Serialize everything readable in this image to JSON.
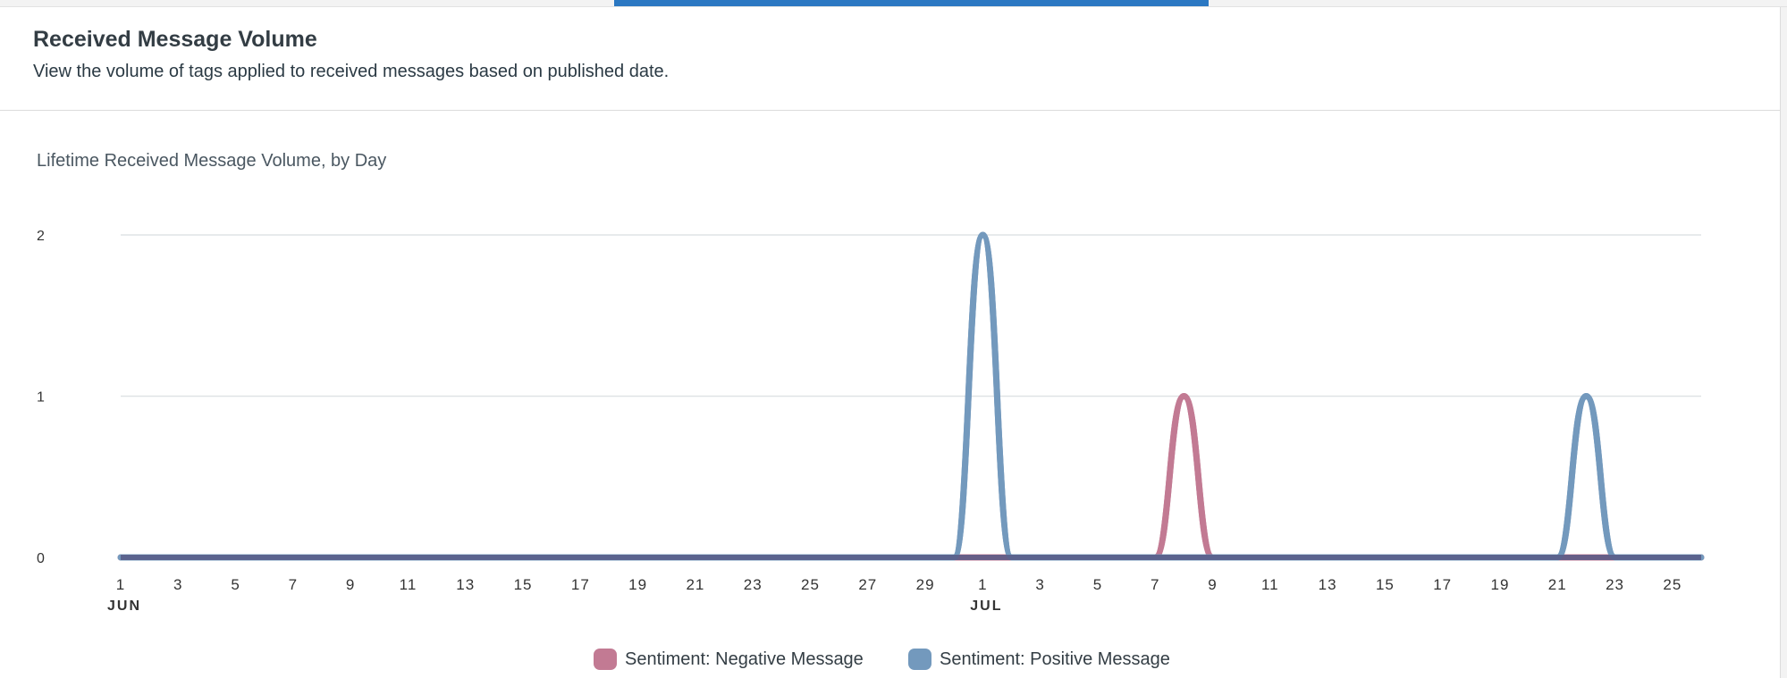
{
  "header": {
    "title": "Received Message Volume",
    "subtitle": "View the volume of tags applied to received messages based on published date."
  },
  "colors": {
    "negative": "#c27a93",
    "positive": "#7399bd",
    "baseline": "#575a86",
    "accent": "#2b78c2"
  },
  "chart_data": {
    "type": "line",
    "title": "Lifetime Received Message Volume, by Day",
    "xlabel": "",
    "ylabel": "",
    "ylim": [
      0,
      2
    ],
    "yticks": [
      "0",
      "1",
      "2"
    ],
    "xlim": [
      "2023-06-01",
      "2023-07-26"
    ],
    "grid": true,
    "legend_position": "bottom-center",
    "x_tick_labels": [
      {
        "date": "2023-06-01",
        "label": "1",
        "month": "JUN"
      },
      {
        "date": "2023-06-03",
        "label": "3"
      },
      {
        "date": "2023-06-05",
        "label": "5"
      },
      {
        "date": "2023-06-07",
        "label": "7"
      },
      {
        "date": "2023-06-09",
        "label": "9"
      },
      {
        "date": "2023-06-11",
        "label": "11"
      },
      {
        "date": "2023-06-13",
        "label": "13"
      },
      {
        "date": "2023-06-15",
        "label": "15"
      },
      {
        "date": "2023-06-17",
        "label": "17"
      },
      {
        "date": "2023-06-19",
        "label": "19"
      },
      {
        "date": "2023-06-21",
        "label": "21"
      },
      {
        "date": "2023-06-23",
        "label": "23"
      },
      {
        "date": "2023-06-25",
        "label": "25"
      },
      {
        "date": "2023-06-27",
        "label": "27"
      },
      {
        "date": "2023-06-29",
        "label": "29"
      },
      {
        "date": "2023-07-01",
        "label": "1",
        "month": "JUL"
      },
      {
        "date": "2023-07-03",
        "label": "3"
      },
      {
        "date": "2023-07-05",
        "label": "5"
      },
      {
        "date": "2023-07-07",
        "label": "7"
      },
      {
        "date": "2023-07-09",
        "label": "9"
      },
      {
        "date": "2023-07-11",
        "label": "11"
      },
      {
        "date": "2023-07-13",
        "label": "13"
      },
      {
        "date": "2023-07-15",
        "label": "15"
      },
      {
        "date": "2023-07-17",
        "label": "17"
      },
      {
        "date": "2023-07-19",
        "label": "19"
      },
      {
        "date": "2023-07-21",
        "label": "21"
      },
      {
        "date": "2023-07-23",
        "label": "23"
      },
      {
        "date": "2023-07-25",
        "label": "25"
      }
    ],
    "series": [
      {
        "name": "Sentiment: Negative Message",
        "color": "#c27a93",
        "points": [
          {
            "x": "2023-06-01",
            "y": 0
          },
          {
            "x": "2023-07-07",
            "y": 0
          },
          {
            "x": "2023-07-08",
            "y": 1
          },
          {
            "x": "2023-07-09",
            "y": 0
          },
          {
            "x": "2023-07-26",
            "y": 0
          }
        ]
      },
      {
        "name": "Sentiment: Positive Message",
        "color": "#7399bd",
        "points": [
          {
            "x": "2023-06-01",
            "y": 0
          },
          {
            "x": "2023-06-30",
            "y": 0
          },
          {
            "x": "2023-07-01",
            "y": 2
          },
          {
            "x": "2023-07-02",
            "y": 0
          },
          {
            "x": "2023-07-21",
            "y": 0
          },
          {
            "x": "2023-07-22",
            "y": 1
          },
          {
            "x": "2023-07-23",
            "y": 0
          },
          {
            "x": "2023-07-26",
            "y": 0
          }
        ]
      }
    ]
  }
}
